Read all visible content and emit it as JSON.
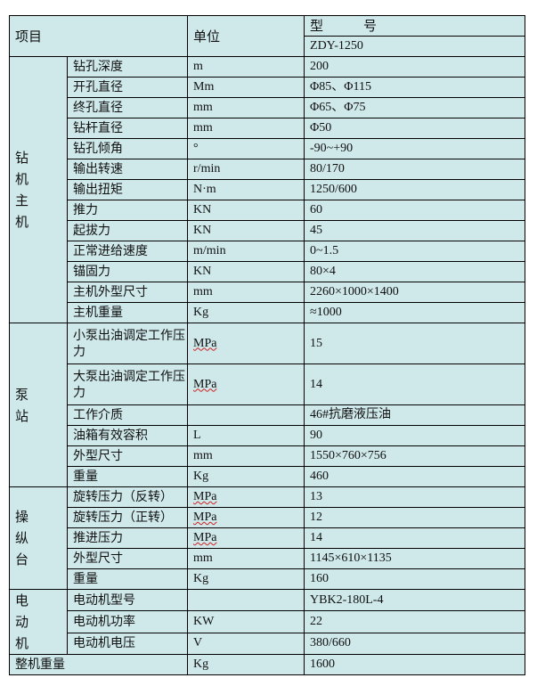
{
  "header": {
    "item": "项目",
    "unit": "单位",
    "model_label": "型　　　号",
    "model": "ZDY-1250"
  },
  "groups": [
    {
      "name": "钻\n机\n主\n机",
      "rows": [
        {
          "item": "钻孔深度",
          "unit": "m",
          "value": "200"
        },
        {
          "item": "开孔直径",
          "unit": "Mm",
          "value": "Φ85、Φ115"
        },
        {
          "item": "终孔直径",
          "unit": "mm",
          "value": "Φ65、Φ75"
        },
        {
          "item": "钻杆直径",
          "unit": "mm",
          "value": "Φ50"
        },
        {
          "item": "钻孔倾角",
          "unit": "°",
          "value": "-90~+90"
        },
        {
          "item": "输出转速",
          "unit": "r/min",
          "value": "80/170"
        },
        {
          "item": "输出扭矩",
          "unit": "N·m",
          "value": "1250/600"
        },
        {
          "item": "推力",
          "unit": "KN",
          "value": "60"
        },
        {
          "item": "起拔力",
          "unit": "KN",
          "value": "45"
        },
        {
          "item": "正常进给速度",
          "unit": "m/min",
          "value": "0~1.5"
        },
        {
          "item": "锚固力",
          "unit": "KN",
          "value": "80×4"
        },
        {
          "item": "主机外型尺寸",
          "unit": "mm",
          "value": "2260×1000×1400"
        },
        {
          "item": "主机重量",
          "unit": "Kg",
          "value": "≈1000"
        }
      ]
    },
    {
      "name": "泵\n站",
      "rows": [
        {
          "item": "小泵出油调定工作压力",
          "unit": "MPa",
          "value": "15"
        },
        {
          "item": "大泵出油调定工作压力",
          "unit": "MPa",
          "value": "14"
        },
        {
          "item": "工作介质",
          "unit": "",
          "value": "46#抗磨液压油"
        },
        {
          "item": "油箱有效容积",
          "unit": "L",
          "value": "90"
        },
        {
          "item": "外型尺寸",
          "unit": "mm",
          "value": "1550×760×756"
        },
        {
          "item": "重量",
          "unit": "Kg",
          "value": "460"
        }
      ]
    },
    {
      "name": "操\n纵\n台",
      "rows": [
        {
          "item": "旋转压力（反转）",
          "unit": "MPa",
          "value": "13"
        },
        {
          "item": "旋转压力（正转）",
          "unit": "MPa",
          "value": "12"
        },
        {
          "item": "推进压力",
          "unit": "MPa",
          "value": "14"
        },
        {
          "item": "外型尺寸",
          "unit": "mm",
          "value": "1145×610×1135"
        },
        {
          "item": "重量",
          "unit": "Kg",
          "value": "160"
        }
      ]
    },
    {
      "name": "电\n动\n机",
      "rows": [
        {
          "item": "电动机型号",
          "unit": "",
          "value": "YBK2-180L-4"
        },
        {
          "item": "电动机功率",
          "unit": "KW",
          "value": "22"
        },
        {
          "item": "电动机电压",
          "unit": "V",
          "value": "380/660"
        }
      ]
    }
  ],
  "total": {
    "item": "整机重量",
    "unit": "Kg",
    "value": "1600"
  }
}
